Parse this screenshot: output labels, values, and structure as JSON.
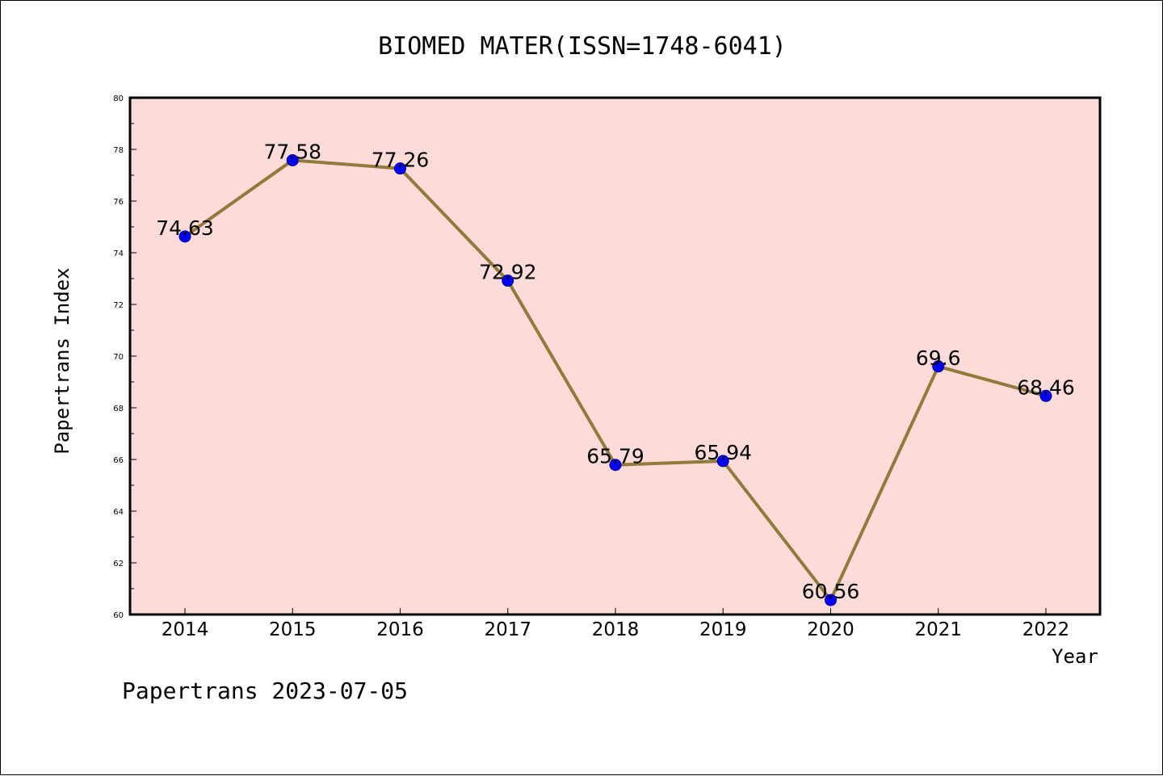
{
  "chart_data": {
    "type": "line",
    "title": "BIOMED MATER(ISSN=1748-6041)",
    "xlabel": "Year",
    "ylabel": "Papertrans Index",
    "x": [
      "2014",
      "2015",
      "2016",
      "2017",
      "2018",
      "2019",
      "2020",
      "2021",
      "2022"
    ],
    "values": [
      74.63,
      77.58,
      77.26,
      72.92,
      65.79,
      65.94,
      60.56,
      69.6,
      68.46
    ],
    "data_labels": [
      "74.63",
      "77.58",
      "77.26",
      "72.92",
      "65.79",
      "65.94",
      "60.56",
      "69.6",
      "68.46"
    ],
    "ylim": [
      60,
      80
    ],
    "yticks": [
      60,
      62,
      64,
      66,
      68,
      70,
      72,
      74,
      76,
      78,
      80
    ],
    "grid": false,
    "legend": "none",
    "colors": {
      "plot_background": "#fddbd8",
      "line": "#917a3a",
      "marker": "#0000ff",
      "marker_edge": "#00008b"
    }
  },
  "footer": "Papertrans 2023-07-05"
}
